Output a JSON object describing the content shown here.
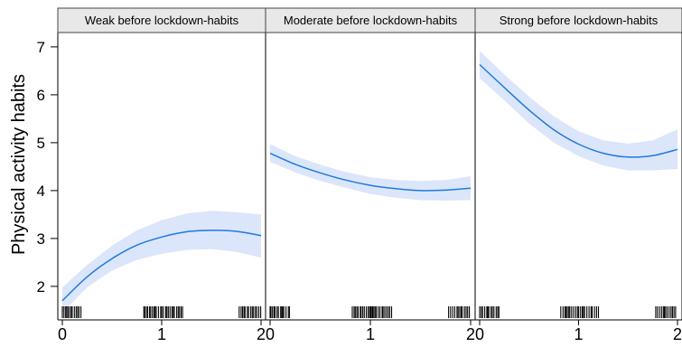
{
  "chart_data": {
    "type": "line",
    "ylabel": "Physical activity habits",
    "xlabel": "",
    "ylim": [
      1.3,
      7.3
    ],
    "xlim": [
      -0.05,
      2.0
    ],
    "y_ticks": [
      2,
      3,
      4,
      5,
      6,
      7
    ],
    "x_ticks": [
      0,
      1,
      2
    ],
    "colors": {
      "line": "#1f7ae0",
      "band": "#dbe6fb",
      "strip_bg": "#e8e8e8",
      "rug": "#000000"
    },
    "panels": [
      {
        "title": "Weak before lockdown-habits",
        "x": [
          0,
          0.25,
          0.5,
          0.75,
          1.0,
          1.25,
          1.5,
          1.75,
          2.0
        ],
        "y": [
          1.7,
          2.2,
          2.58,
          2.86,
          3.03,
          3.14,
          3.17,
          3.15,
          3.06
        ],
        "lower": [
          1.45,
          1.98,
          2.33,
          2.55,
          2.68,
          2.76,
          2.78,
          2.72,
          2.6
        ],
        "upper": [
          1.98,
          2.45,
          2.85,
          3.17,
          3.38,
          3.52,
          3.58,
          3.55,
          3.5
        ]
      },
      {
        "title": "Moderate before lockdown-habits",
        "x": [
          0,
          0.25,
          0.5,
          0.75,
          1.0,
          1.25,
          1.5,
          1.75,
          2.0
        ],
        "y": [
          4.78,
          4.55,
          4.37,
          4.22,
          4.11,
          4.04,
          4.0,
          4.01,
          4.05
        ],
        "lower": [
          4.6,
          4.38,
          4.2,
          4.06,
          3.93,
          3.85,
          3.8,
          3.79,
          3.8
        ],
        "upper": [
          4.97,
          4.72,
          4.54,
          4.39,
          4.28,
          4.22,
          4.2,
          4.22,
          4.3
        ]
      },
      {
        "title": "Strong before lockdown-habits",
        "x": [
          0,
          0.25,
          0.5,
          0.75,
          1.0,
          1.25,
          1.5,
          1.75,
          2.0
        ],
        "y": [
          6.63,
          6.15,
          5.68,
          5.27,
          4.97,
          4.78,
          4.7,
          4.73,
          4.86
        ],
        "lower": [
          6.35,
          5.88,
          5.4,
          5.0,
          4.72,
          4.52,
          4.42,
          4.42,
          4.45
        ],
        "upper": [
          6.92,
          6.42,
          5.96,
          5.55,
          5.24,
          5.05,
          4.98,
          5.05,
          5.28
        ]
      }
    ],
    "rug_ranges": [
      [
        0.0,
        0.2
      ],
      [
        0.82,
        1.22
      ],
      [
        1.78,
        2.0
      ]
    ]
  }
}
